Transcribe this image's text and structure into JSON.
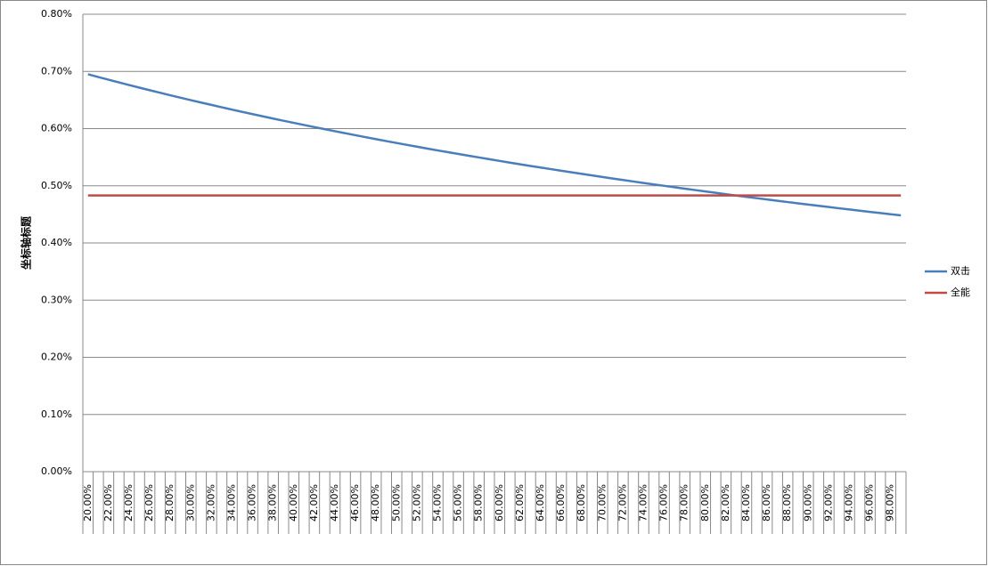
{
  "chart_data": {
    "type": "line",
    "y_axis_label": "坐标轴标题",
    "categories": [
      "20.00%",
      null,
      "22.00%",
      null,
      "24.00%",
      null,
      "26.00%",
      null,
      "28.00%",
      null,
      "30.00%",
      null,
      "32.00%",
      null,
      "34.00%",
      null,
      "36.00%",
      null,
      "38.00%",
      null,
      "40.00%",
      null,
      "42.00%",
      null,
      "44.00%",
      null,
      "46.00%",
      null,
      "48.00%",
      null,
      "50.00%",
      null,
      "52.00%",
      null,
      "54.00%",
      null,
      "56.00%",
      null,
      "58.00%",
      null,
      "60.00%",
      null,
      "62.00%",
      null,
      "64.00%",
      null,
      "66.00%",
      null,
      "68.00%",
      null,
      "70.00%",
      null,
      "72.00%",
      null,
      "74.00%",
      null,
      "76.00%",
      null,
      "78.00%",
      null,
      "80.00%",
      null,
      "82.00%",
      null,
      "84.00%",
      null,
      "86.00%",
      null,
      "88.00%",
      null,
      "90.00%",
      null,
      "92.00%",
      null,
      "94.00%",
      null,
      "96.00%",
      null,
      "98.00%",
      null
    ],
    "series": [
      {
        "name": "双击",
        "color": "#4a7ebb",
        "values": [
          0.695,
          0.6902,
          0.6855,
          0.6808,
          0.6762,
          0.6716,
          0.6671,
          0.6627,
          0.6583,
          0.654,
          0.6497,
          0.6455,
          0.6414,
          0.6373,
          0.6332,
          0.6292,
          0.6253,
          0.6214,
          0.6175,
          0.6137,
          0.61,
          0.6063,
          0.6026,
          0.599,
          0.5954,
          0.5919,
          0.5884,
          0.5849,
          0.5815,
          0.5781,
          0.5748,
          0.5715,
          0.5683,
          0.565,
          0.5618,
          0.5587,
          0.5556,
          0.5525,
          0.5495,
          0.5465,
          0.5435,
          0.5405,
          0.5376,
          0.5347,
          0.5319,
          0.5291,
          0.5263,
          0.5235,
          0.5208,
          0.5181,
          0.5154,
          0.5127,
          0.5101,
          0.5075,
          0.5049,
          0.5024,
          0.4999,
          0.4974,
          0.4949,
          0.4925,
          0.49,
          0.4877,
          0.4853,
          0.4829,
          0.4806,
          0.4783,
          0.476,
          0.4738,
          0.4715,
          0.4693,
          0.4671,
          0.4649,
          0.4628,
          0.4606,
          0.4585,
          0.4564,
          0.4543,
          0.4523,
          0.4502,
          0.4482
        ]
      },
      {
        "name": "全能",
        "color": "#be4b48",
        "values": [
          0.483,
          0.483,
          0.483,
          0.483,
          0.483,
          0.483,
          0.483,
          0.483,
          0.483,
          0.483,
          0.483,
          0.483,
          0.483,
          0.483,
          0.483,
          0.483,
          0.483,
          0.483,
          0.483,
          0.483,
          0.483,
          0.483,
          0.483,
          0.483,
          0.483,
          0.483,
          0.483,
          0.483,
          0.483,
          0.483,
          0.483,
          0.483,
          0.483,
          0.483,
          0.483,
          0.483,
          0.483,
          0.483,
          0.483,
          0.483,
          0.483,
          0.483,
          0.483,
          0.483,
          0.483,
          0.483,
          0.483,
          0.483,
          0.483,
          0.483,
          0.483,
          0.483,
          0.483,
          0.483,
          0.483,
          0.483,
          0.483,
          0.483,
          0.483,
          0.483,
          0.483,
          0.483,
          0.483,
          0.483,
          0.483,
          0.483,
          0.483,
          0.483,
          0.483,
          0.483,
          0.483,
          0.483,
          0.483,
          0.483,
          0.483,
          0.483,
          0.483,
          0.483,
          0.483,
          0.483
        ]
      }
    ],
    "ylim": [
      0,
      0.8
    ],
    "yticks": [
      {
        "value": 0,
        "label": "0.00%"
      },
      {
        "value": 0.1,
        "label": "0.10%"
      },
      {
        "value": 0.2,
        "label": "0.20%"
      },
      {
        "value": 0.3,
        "label": "0.30%"
      },
      {
        "value": 0.4,
        "label": "0.40%"
      },
      {
        "value": 0.5,
        "label": "0.50%"
      },
      {
        "value": 0.6,
        "label": "0.60%"
      },
      {
        "value": 0.7,
        "label": "0.70%"
      },
      {
        "value": 0.8,
        "label": "0.80%"
      }
    ],
    "grid": true,
    "legend": "right"
  }
}
